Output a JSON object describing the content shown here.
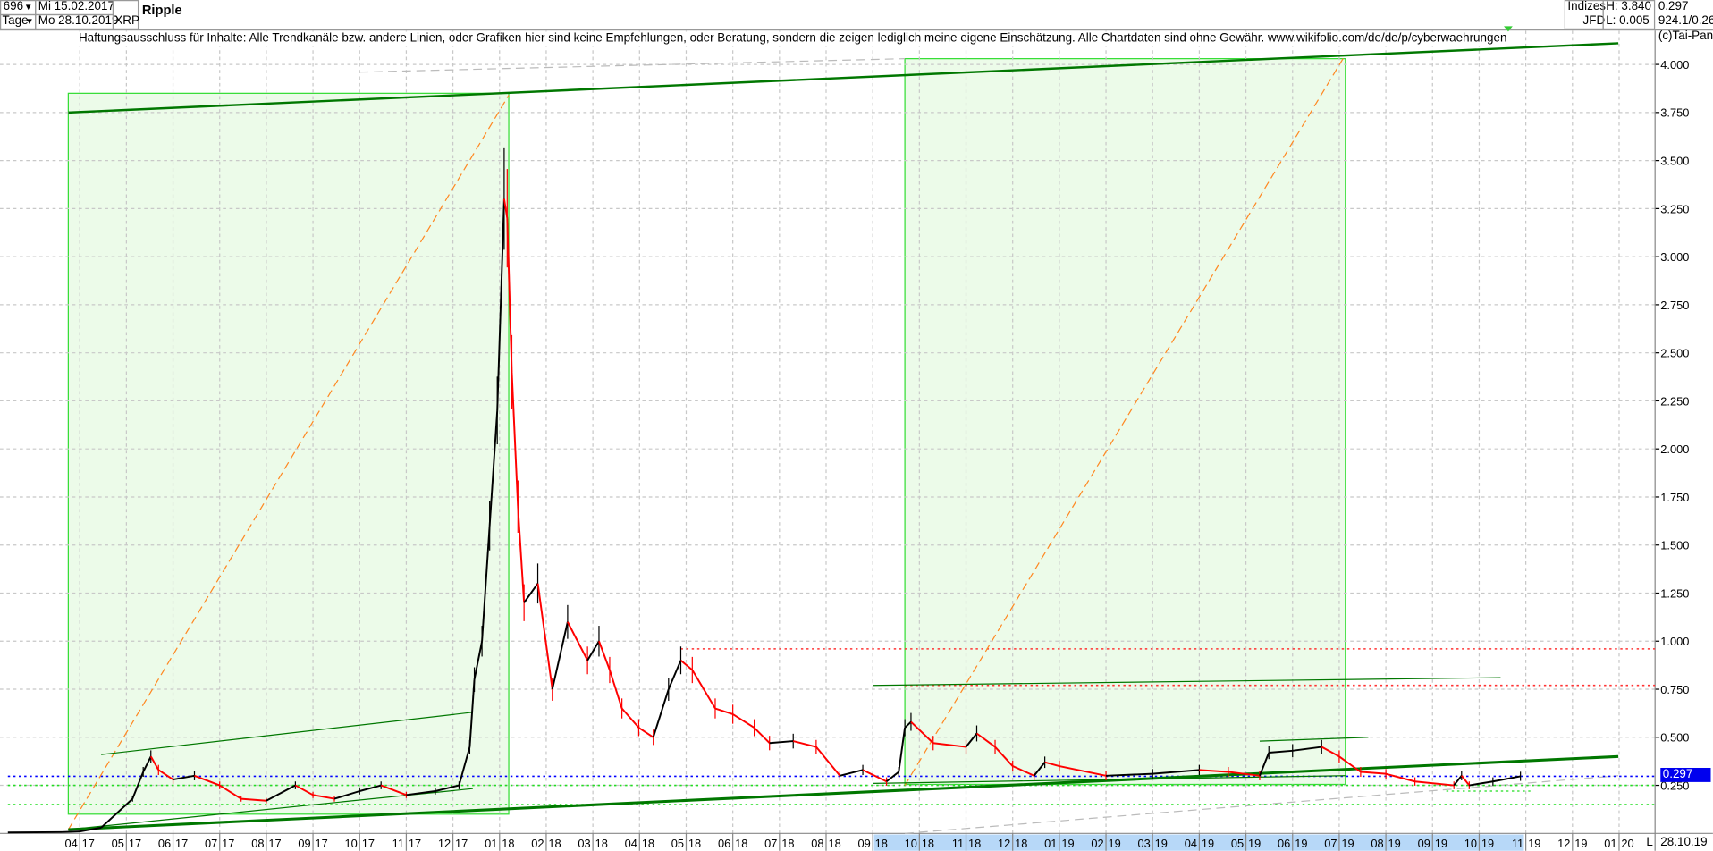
{
  "header": {
    "bars_count": "696",
    "period": "Tage",
    "start_date": "Mi 15.02.2017",
    "end_date": "Mo 28.10.2019",
    "symbol": "XRP",
    "title": "Ripple",
    "market": "Indizes",
    "broker": "JFD",
    "high": "H: 3.840",
    "low": "L: 0.005",
    "last": "0.297",
    "info": "924.1/0.26",
    "copyright": "(c)Tai-Pan",
    "disclaimer": "Haftungsausschluss für Inhalte: Alle Trendkanäle bzw. andere Linien, oder Grafiken hier sind keine Empfehlungen, oder Beratung, sondern die zeigen lediglich meine eigene Einschätzung. Alle Chartdaten sind ohne Gewähr.  www.wikifolio.com/de/de/p/cyberwaehrungen"
  },
  "chart_data": {
    "type": "line",
    "title": "Ripple",
    "ylim": [
      0,
      4.1
    ],
    "yticks": [
      "4.000",
      "3.750",
      "3.500",
      "3.250",
      "3.000",
      "2.750",
      "2.500",
      "2.250",
      "2.000",
      "1.750",
      "1.500",
      "1.250",
      "1.000",
      "0.750",
      "0.500",
      "0.250"
    ],
    "xticks": [
      "04 17",
      "05 17",
      "06 17",
      "07 17",
      "08 17",
      "09 17",
      "10 17",
      "11 17",
      "12 17",
      "01 18",
      "02 18",
      "03 18",
      "04 18",
      "05 18",
      "06 18",
      "07 18",
      "08 18",
      "09 18",
      "10 18",
      "11 18",
      "12 18",
      "01 19",
      "02 19",
      "03 19",
      "04 19",
      "05 19",
      "06 19",
      "07 19",
      "08 19",
      "09 19",
      "10 19",
      "11 19",
      "12 19",
      "01 20"
    ],
    "x_end_label": "28.10.19",
    "x_scale_label": "L",
    "grid": true,
    "current_price": 0.297,
    "colors": {
      "up": "#000000",
      "down": "#ff0000",
      "channel_fill": "#ecfbe9",
      "channel_border": "#33dd33",
      "trend": "#007700",
      "fib": "#ff8822",
      "current": "#0000ff",
      "resistance": "#ff3333",
      "support": "#22dd22"
    },
    "series": [
      {
        "x": [
          "2017-02-15",
          "2017-03-20",
          "2017-04-01",
          "2017-04-15",
          "2017-05-05",
          "2017-05-12",
          "2017-05-17",
          "2017-05-22",
          "2017-06-01",
          "2017-06-15",
          "2017-07-01",
          "2017-07-15",
          "2017-08-01",
          "2017-08-20",
          "2017-09-01",
          "2017-09-15",
          "2017-10-01",
          "2017-10-15",
          "2017-11-01",
          "2017-11-20",
          "2017-12-05",
          "2017-12-12",
          "2017-12-15",
          "2017-12-20",
          "2017-12-25",
          "2017-12-30",
          "2018-01-04",
          "2018-01-06",
          "2018-01-09",
          "2018-01-13",
          "2018-01-17",
          "2018-01-26",
          "2018-02-05",
          "2018-02-15",
          "2018-02-28",
          "2018-03-05",
          "2018-03-12",
          "2018-03-20",
          "2018-03-31",
          "2018-04-10",
          "2018-04-20",
          "2018-04-28",
          "2018-05-05",
          "2018-05-20",
          "2018-06-01",
          "2018-06-15",
          "2018-06-25",
          "2018-07-10",
          "2018-07-25",
          "2018-08-10",
          "2018-08-25",
          "2018-09-10",
          "2018-09-18",
          "2018-09-22",
          "2018-09-26",
          "2018-10-10",
          "2018-11-01",
          "2018-11-08",
          "2018-11-20",
          "2018-12-01",
          "2018-12-15",
          "2018-12-22",
          "2019-01-01",
          "2019-02-01",
          "2019-03-01",
          "2019-04-01",
          "2019-04-20",
          "2019-05-10",
          "2019-05-16",
          "2019-06-01",
          "2019-06-20",
          "2019-07-01",
          "2019-07-15",
          "2019-08-01",
          "2019-08-20",
          "2019-09-15",
          "2019-09-20",
          "2019-09-25",
          "2019-10-10",
          "2019-10-28"
        ],
        "y": [
          0.005,
          0.007,
          0.01,
          0.03,
          0.18,
          0.32,
          0.4,
          0.33,
          0.28,
          0.3,
          0.25,
          0.18,
          0.17,
          0.25,
          0.2,
          0.18,
          0.22,
          0.25,
          0.2,
          0.22,
          0.25,
          0.45,
          0.8,
          1.0,
          1.6,
          2.2,
          3.3,
          3.2,
          2.4,
          1.7,
          1.2,
          1.3,
          0.75,
          1.1,
          0.9,
          1.0,
          0.85,
          0.65,
          0.55,
          0.5,
          0.75,
          0.9,
          0.85,
          0.65,
          0.62,
          0.55,
          0.47,
          0.48,
          0.45,
          0.3,
          0.33,
          0.27,
          0.32,
          0.55,
          0.58,
          0.47,
          0.45,
          0.52,
          0.45,
          0.35,
          0.3,
          0.37,
          0.35,
          0.3,
          0.31,
          0.33,
          0.32,
          0.3,
          0.42,
          0.43,
          0.45,
          0.4,
          0.32,
          0.31,
          0.27,
          0.25,
          0.3,
          0.25,
          0.27,
          0.297
        ]
      }
    ],
    "annotations": {
      "rectangles": [
        {
          "x1": "2017-03-24",
          "x2": "2018-01-07",
          "y1": 0.1,
          "y2": 3.85
        },
        {
          "x1": "2018-09-22",
          "x2": "2019-07-05",
          "y1": 0.255,
          "y2": 4.03
        }
      ],
      "trendlines": [
        {
          "x1": "2017-03-24",
          "y1": 3.75,
          "x2": "2019-12-31",
          "y2": 4.11,
          "w": 2
        },
        {
          "x1": "2017-03-24",
          "y1": 0.02,
          "x2": "2019-12-31",
          "y2": 0.4,
          "w": 2.5
        },
        {
          "x1": "2017-04-15",
          "y1": 0.41,
          "x2": "2017-12-14",
          "y2": 0.63,
          "w": 1
        },
        {
          "x1": "2017-03-24",
          "y1": 0.02,
          "x2": "2017-12-14",
          "y2": 0.233,
          "w": 1
        },
        {
          "x1": "2018-09-01",
          "y1": 0.77,
          "x2": "2019-10-15",
          "y2": 0.81,
          "w": 1
        },
        {
          "x1": "2018-09-01",
          "y1": 0.26,
          "x2": "2019-07-05",
          "y2": 0.3,
          "w": 1
        },
        {
          "x1": "2019-05-10",
          "y1": 0.48,
          "x2": "2019-07-20",
          "y2": 0.5,
          "w": 1
        }
      ],
      "fib_lines": [
        {
          "x1": "2017-03-24",
          "y1": 0.02,
          "x2": "2018-01-07",
          "y2": 3.84
        },
        {
          "x1": "2018-09-22",
          "y1": 0.25,
          "x2": "2019-07-05",
          "y2": 4.05
        }
      ],
      "gray_lines": [
        {
          "x1": "2017-10-01",
          "y1": 3.96,
          "x2": "2018-09-22",
          "y2": 4.03
        },
        {
          "x1": "2018-09-22",
          "y1": 0.0,
          "x2": "2019-12-31",
          "y2": 0.3
        }
      ],
      "horizontal": [
        {
          "y": 0.96,
          "x1": "2018-04-28",
          "style": "resistance"
        },
        {
          "y": 0.77,
          "x1": "2018-09-22",
          "style": "resistance"
        },
        {
          "y": 0.297,
          "x1": "2017-02-15",
          "style": "current"
        },
        {
          "y": 0.25,
          "x1": "2017-02-15",
          "style": "support"
        },
        {
          "y": 0.15,
          "x1": "2017-02-15",
          "style": "support"
        }
      ]
    }
  }
}
